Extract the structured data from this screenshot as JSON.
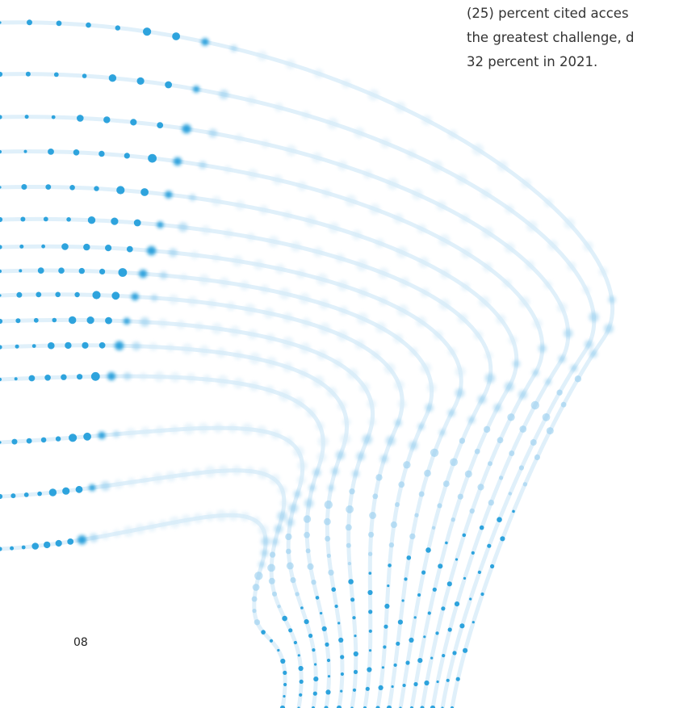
{
  "body_text": {
    "lines": [
      "(25) percent cited acces",
      "the greatest challenge, d",
      "32 percent in 2021."
    ]
  },
  "page_number": "08",
  "decoration": {
    "name": "dotted-wave-lines",
    "color_light": "#d6ebf8",
    "color_mid": "#8fcbed",
    "color_dark": "#1a9ad9"
  }
}
